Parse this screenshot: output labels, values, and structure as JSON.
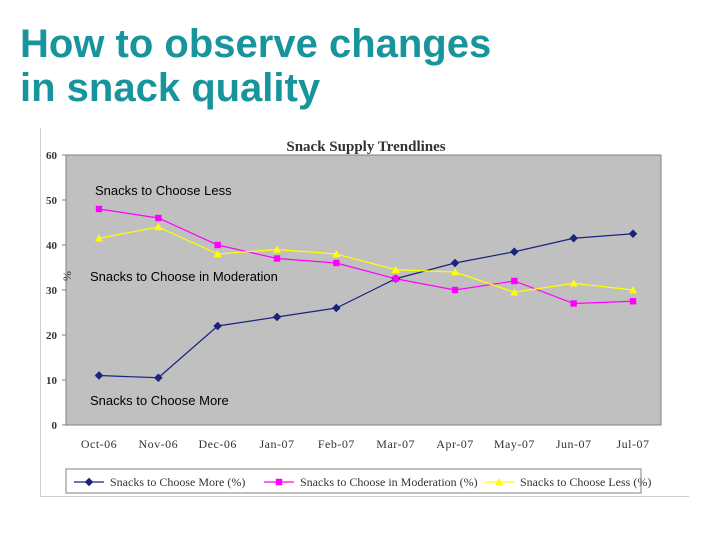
{
  "slide": {
    "title_line1": "How to observe changes",
    "title_line2": "in snack quality"
  },
  "chart_data": {
    "type": "line",
    "title": "Snack Supply Trendlines",
    "xlabel": "",
    "ylabel": "%",
    "ylim": [
      0,
      60
    ],
    "yticks": [
      0,
      10,
      20,
      30,
      40,
      50,
      60
    ],
    "grid": false,
    "legend_position": "bottom",
    "categories": [
      "Oct-06",
      "Nov-06",
      "Dec-06",
      "Jan-07",
      "Feb-07",
      "Mar-07",
      "Apr-07",
      "May-07",
      "Jun-07",
      "Jul-07"
    ],
    "series": [
      {
        "name": "Snacks to Choose More (%)",
        "color": "#1a237e",
        "marker": "diamond",
        "values": [
          11,
          10.5,
          22,
          24,
          26,
          32.5,
          36,
          38.5,
          41.5,
          42.5
        ]
      },
      {
        "name": "Snacks to Choose in Moderation (%)",
        "color": "#ff00ff",
        "marker": "square",
        "values": [
          48,
          46,
          40,
          37,
          36,
          32.5,
          30,
          32,
          27,
          27.5
        ]
      },
      {
        "name": "Snacks to Choose Less (%)",
        "color": "#ffff00",
        "marker": "triangle",
        "values": [
          41.5,
          44,
          38,
          39,
          38,
          34.5,
          34,
          29.5,
          31.5,
          30
        ]
      }
    ],
    "annotations": [
      {
        "text": "Snacks to Choose Less",
        "series": 2
      },
      {
        "text": "Snacks to Choose in Moderation",
        "series": 1
      },
      {
        "text": "Snacks to Choose More",
        "series": 0
      }
    ]
  }
}
